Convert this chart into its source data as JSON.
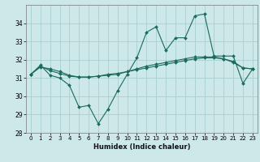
{
  "xlabel": "Humidex (Indice chaleur)",
  "background_color": "#cce8e8",
  "grid_color": "#aacfcf",
  "line_color": "#1a6b5a",
  "x": [
    0,
    1,
    2,
    3,
    4,
    5,
    6,
    7,
    8,
    9,
    10,
    11,
    12,
    13,
    14,
    15,
    16,
    17,
    18,
    19,
    20,
    21,
    22,
    23
  ],
  "line1": [
    31.2,
    31.7,
    31.15,
    31.0,
    30.6,
    29.4,
    29.5,
    28.5,
    29.3,
    30.3,
    31.2,
    32.1,
    33.5,
    33.8,
    32.5,
    33.2,
    33.2,
    34.4,
    34.5,
    32.2,
    32.2,
    32.2,
    30.7,
    31.5
  ],
  "line2": [
    31.2,
    31.65,
    31.4,
    31.25,
    31.1,
    31.05,
    31.05,
    31.1,
    31.15,
    31.2,
    31.35,
    31.5,
    31.65,
    31.75,
    31.85,
    31.95,
    32.05,
    32.15,
    32.15,
    32.15,
    32.05,
    31.85,
    31.55,
    31.5
  ],
  "line3": [
    31.2,
    31.6,
    31.5,
    31.35,
    31.15,
    31.05,
    31.05,
    31.1,
    31.2,
    31.25,
    31.35,
    31.45,
    31.55,
    31.65,
    31.75,
    31.85,
    31.95,
    32.05,
    32.1,
    32.1,
    32.05,
    31.9,
    31.55,
    31.5
  ],
  "ylim": [
    28,
    35
  ],
  "yticks": [
    28,
    29,
    30,
    31,
    32,
    33,
    34
  ],
  "xlim": [
    -0.5,
    23.5
  ],
  "xlabel_fontsize": 6.0,
  "ytick_fontsize": 5.5,
  "xtick_fontsize": 5.0
}
